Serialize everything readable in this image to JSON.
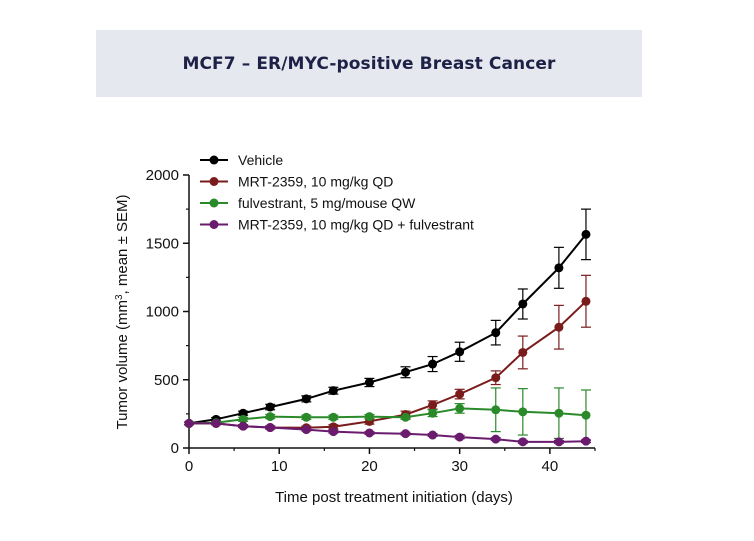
{
  "header": {
    "title": "MCF7 – ER/MYC-positive Breast Cancer"
  },
  "chart_data": {
    "type": "line",
    "title": "MCF7 – ER/MYC-positive Breast Cancer",
    "xlabel": "Time post treatment initiation (days)",
    "ylabel_parts": {
      "before_sup": "Tumor volume (mm",
      "sup": "3",
      "after_sup": ", mean ± SEM)"
    },
    "xlim": [
      0,
      45
    ],
    "ylim": [
      0,
      2000
    ],
    "x_ticks": [
      "0",
      "10",
      "20",
      "30",
      "40"
    ],
    "y_ticks": [
      "0",
      "500",
      "1000",
      "1500",
      "2000"
    ],
    "x_tick_values": [
      0,
      10,
      20,
      30,
      40
    ],
    "y_tick_values": [
      0,
      500,
      1000,
      1500,
      2000
    ],
    "legend_position": "top-left",
    "series": [
      {
        "name": "Vehicle",
        "color": "#000000",
        "x": [
          0,
          3,
          6,
          9,
          13,
          16,
          20,
          24,
          27,
          30,
          34,
          37,
          41,
          44
        ],
        "y": [
          180,
          210,
          255,
          300,
          360,
          420,
          480,
          555,
          615,
          705,
          845,
          1055,
          1320,
          1565
        ],
        "err": [
          10,
          12,
          15,
          20,
          22,
          25,
          30,
          40,
          55,
          70,
          90,
          110,
          150,
          185
        ]
      },
      {
        "name": "MRT-2359, 10 mg/kg QD",
        "color": "#7b1c1c",
        "x": [
          0,
          3,
          6,
          9,
          13,
          16,
          20,
          24,
          27,
          30,
          34,
          37,
          41,
          44
        ],
        "y": [
          180,
          180,
          160,
          150,
          148,
          155,
          195,
          245,
          315,
          395,
          515,
          700,
          885,
          1075
        ],
        "err": [
          10,
          10,
          10,
          12,
          12,
          15,
          20,
          25,
          30,
          35,
          50,
          120,
          160,
          190
        ]
      },
      {
        "name": "fulvestrant, 5 mg/mouse QW",
        "color": "#2a8a2a",
        "x": [
          0,
          3,
          6,
          9,
          13,
          16,
          20,
          24,
          27,
          30,
          34,
          37,
          41,
          44
        ],
        "y": [
          180,
          185,
          210,
          230,
          225,
          225,
          230,
          225,
          255,
          290,
          280,
          265,
          255,
          240
        ],
        "err": [
          10,
          10,
          15,
          15,
          15,
          15,
          15,
          15,
          25,
          35,
          160,
          170,
          185,
          185
        ]
      },
      {
        "name": "MRT-2359, 10 mg/kg QD + fulvestrant",
        "color": "#6a1b6e",
        "x": [
          0,
          3,
          6,
          9,
          13,
          16,
          20,
          24,
          27,
          30,
          34,
          37,
          41,
          44
        ],
        "y": [
          180,
          180,
          160,
          150,
          135,
          120,
          110,
          105,
          95,
          80,
          65,
          45,
          45,
          50
        ],
        "err": [
          10,
          10,
          10,
          10,
          10,
          10,
          10,
          10,
          10,
          12,
          10,
          10,
          10,
          10
        ]
      }
    ]
  }
}
